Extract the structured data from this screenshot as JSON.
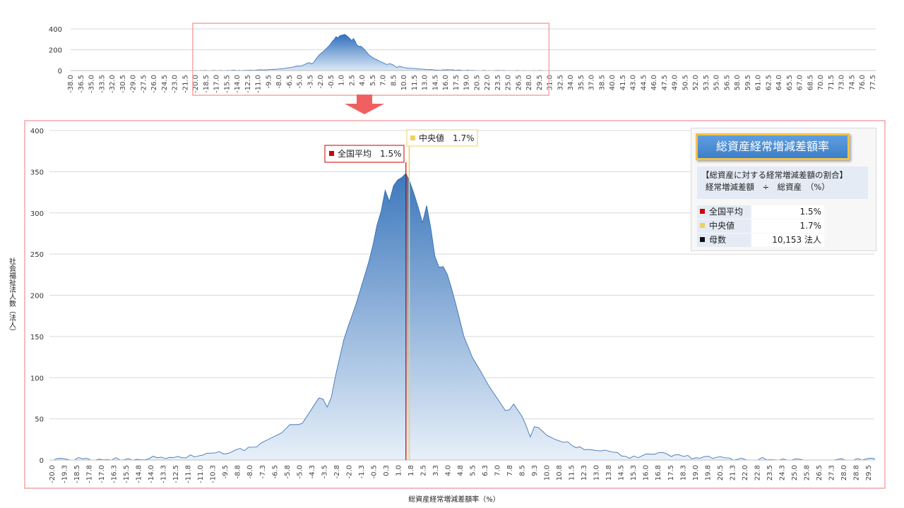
{
  "chart_data": [
    {
      "type": "area",
      "view": "overview",
      "x_start": -38.0,
      "x_step": 0.25,
      "x_end": 78.0,
      "x_tick_labels": [
        "-38.0",
        "-36.5",
        "-35.0",
        "-33.5",
        "-32.0",
        "-30.5",
        "-29.0",
        "-27.5",
        "-26.0",
        "-24.5",
        "-23.0",
        "-21.5",
        "-20.0",
        "-18.5",
        "-17.0",
        "-15.5",
        "-14.0",
        "-12.5",
        "-11.0",
        "-9.5",
        "-8.0",
        "-6.5",
        "-5.0",
        "-3.5",
        "-2.0",
        "-0.5",
        "1.0",
        "2.5",
        "4.0",
        "5.5",
        "7.0",
        "8.5",
        "10.0",
        "11.5",
        "13.0",
        "14.5",
        "16.0",
        "17.5",
        "19.0",
        "20.5",
        "22.0",
        "23.5",
        "25.0",
        "26.5",
        "28.0",
        "29.5",
        "31.0",
        "32.5",
        "34.0",
        "35.5",
        "37.0",
        "38.5",
        "40.0",
        "41.5",
        "43.0",
        "44.5",
        "46.0",
        "47.5",
        "49.0",
        "50.5",
        "52.0",
        "53.5",
        "55.0",
        "56.5",
        "58.0",
        "59.5",
        "61.0",
        "62.5",
        "64.0",
        "65.5",
        "67.0",
        "68.5",
        "70.0",
        "71.5",
        "73.0",
        "74.5",
        "76.0",
        "77.5"
      ],
      "y_ticks": [
        0,
        200,
        400
      ],
      "ylim": [
        0,
        400
      ],
      "zoom_range": [
        -20.0,
        29.5
      ]
    },
    {
      "type": "area",
      "view": "detail",
      "x_start": -20.0,
      "x_step": 0.25,
      "x_end": 29.75,
      "x_tick_labels": [
        "-20.0",
        "-19.3",
        "-18.5",
        "-17.8",
        "-17.0",
        "-16.3",
        "-15.5",
        "-14.8",
        "-14.0",
        "-13.3",
        "-12.5",
        "-11.8",
        "-11.0",
        "-10.3",
        "-9.5",
        "-8.8",
        "-8.0",
        "-7.3",
        "-6.5",
        "-5.8",
        "-5.0",
        "-4.3",
        "-3.5",
        "-2.8",
        "-2.0",
        "-1.3",
        "-0.5",
        "0.3",
        "1.0",
        "1.8",
        "2.5",
        "3.3",
        "4.0",
        "4.8",
        "5.5",
        "6.3",
        "7.0",
        "7.8",
        "8.5",
        "9.3",
        "10.0",
        "10.8",
        "11.5",
        "12.3",
        "13.0",
        "13.8",
        "14.5",
        "15.3",
        "16.0",
        "16.8",
        "17.5",
        "18.3",
        "19.0",
        "19.8",
        "20.5",
        "21.3",
        "22.0",
        "22.8",
        "23.5",
        "24.3",
        "25.0",
        "25.8",
        "26.5",
        "27.3",
        "28.0",
        "28.8",
        "29.5"
      ],
      "y_ticks": [
        0,
        50,
        100,
        150,
        200,
        250,
        300,
        350,
        400
      ],
      "ylim": [
        0,
        400
      ],
      "xlabel": "総資産経常増減差額率（%）",
      "ylabel": "社会福祉法人数（法人）",
      "grid": true,
      "markers": [
        {
          "label": "全国平均",
          "value_text": "1.5%",
          "x": 1.5,
          "color": "#cc0000"
        },
        {
          "label": "中央値",
          "value_text": "1.7%",
          "x": 1.7,
          "color": "#f0d060"
        }
      ],
      "peaks": [
        {
          "x": -7.8,
          "y": 15
        },
        {
          "x": -6.0,
          "y": 33
        },
        {
          "x": -5.5,
          "y": 43
        },
        {
          "x": -4.8,
          "y": 43
        },
        {
          "x": -3.6,
          "y": 80
        },
        {
          "x": -3.3,
          "y": 62
        },
        {
          "x": -3.0,
          "y": 76
        },
        {
          "x": -2.7,
          "y": 107
        },
        {
          "x": -2.2,
          "y": 150
        },
        {
          "x": -1.5,
          "y": 190
        },
        {
          "x": -0.6,
          "y": 250
        },
        {
          "x": -0.1,
          "y": 300
        },
        {
          "x": 0.2,
          "y": 305
        },
        {
          "x": 0.3,
          "y": 350
        },
        {
          "x": 0.55,
          "y": 305
        },
        {
          "x": 0.8,
          "y": 340
        },
        {
          "x": 1.0,
          "y": 340
        },
        {
          "x": 1.2,
          "y": 342
        },
        {
          "x": 1.5,
          "y": 348
        },
        {
          "x": 1.8,
          "y": 335
        },
        {
          "x": 2.2,
          "y": 310
        },
        {
          "x": 2.5,
          "y": 288
        },
        {
          "x": 2.8,
          "y": 313
        },
        {
          "x": 3.2,
          "y": 250
        },
        {
          "x": 3.5,
          "y": 234
        },
        {
          "x": 3.8,
          "y": 235
        },
        {
          "x": 4.1,
          "y": 220
        },
        {
          "x": 4.5,
          "y": 190
        },
        {
          "x": 5.0,
          "y": 150
        },
        {
          "x": 5.5,
          "y": 125
        },
        {
          "x": 6.0,
          "y": 108
        },
        {
          "x": 6.5,
          "y": 90
        },
        {
          "x": 7.0,
          "y": 75
        },
        {
          "x": 7.6,
          "y": 57
        },
        {
          "x": 8.0,
          "y": 68
        },
        {
          "x": 8.6,
          "y": 50
        },
        {
          "x": 9.0,
          "y": 28
        },
        {
          "x": 9.3,
          "y": 43
        },
        {
          "x": 10.0,
          "y": 30
        },
        {
          "x": 10.5,
          "y": 25
        },
        {
          "x": 11.5,
          "y": 18
        },
        {
          "x": 13.0,
          "y": 12
        },
        {
          "x": 14.0,
          "y": 10
        },
        {
          "x": 15.0,
          "y": 4
        },
        {
          "x": 16.8,
          "y": 8
        }
      ]
    }
  ],
  "legend": {
    "title": "総資産経常増減差額率",
    "desc_line1": "【総資産に対する経常増減差額の割合】",
    "desc_line2": "経常増減差額　÷　総資産　（%）",
    "rows": [
      {
        "label": "全国平均",
        "value": "1.5%",
        "color": "#cc0000"
      },
      {
        "label": "中央値",
        "value": "1.7%",
        "color": "#f0d060"
      },
      {
        "label": "母数",
        "value": "10,153  法人",
        "color": "#111111"
      }
    ]
  },
  "callouts": {
    "mean": "全国平均　1.5%",
    "median": "中央値　1.7%"
  },
  "colors": {
    "area_top": "#3d78bd",
    "area_bottom": "#e8f0f9",
    "frame": "#f4a6a6",
    "arrow": "#f06060"
  }
}
